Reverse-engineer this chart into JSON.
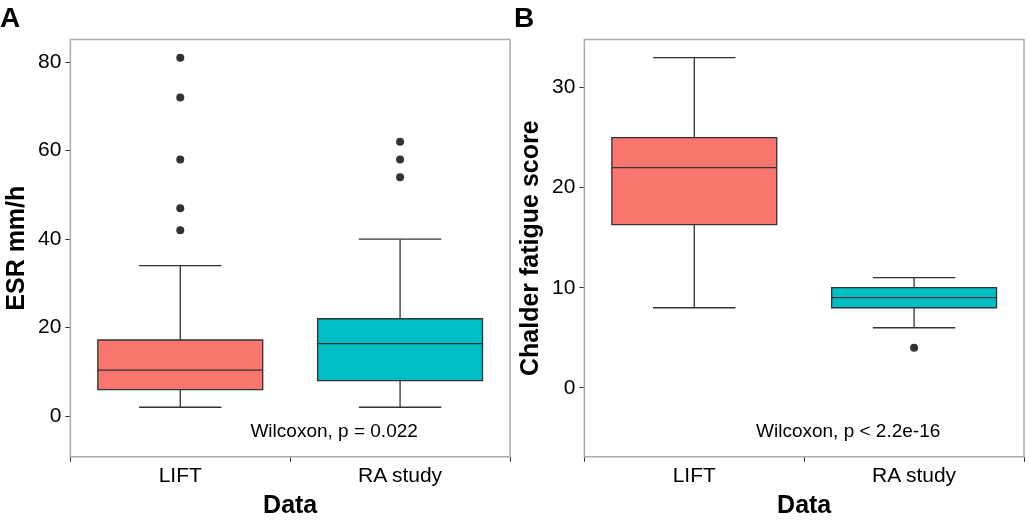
{
  "chart_data": [
    {
      "type": "box",
      "title": "A",
      "xlabel": "Data",
      "ylabel": "ESR mm/h",
      "categories": [
        "LIFT",
        "RA study"
      ],
      "colors": [
        "#f8766d",
        "#00bfc4"
      ],
      "boxes": [
        {
          "low": 2,
          "q1": 6,
          "median": 10.4,
          "q3": 17.2,
          "high": 34,
          "outliers": [
            42,
            47,
            58,
            72,
            81
          ]
        },
        {
          "low": 2,
          "q1": 8,
          "median": 16.4,
          "q3": 22,
          "high": 40,
          "outliers": [
            54,
            58,
            62
          ]
        }
      ],
      "ylim": [
        -9.2,
        85.1
      ],
      "yticks": [
        0,
        20,
        40,
        60,
        80
      ],
      "grid": false,
      "annotations": [
        "Wilcoxon, p = 0.022"
      ]
    },
    {
      "type": "box",
      "title": "B",
      "xlabel": "Data",
      "ylabel": "Chalder fatigue score",
      "categories": [
        "LIFT",
        "RA study"
      ],
      "colors": [
        "#f8766d",
        "#00bfc4"
      ],
      "boxes": [
        {
          "low": 8,
          "q1": 16.3,
          "median": 22,
          "q3": 25,
          "high": 33
        },
        {
          "low": 6,
          "q1": 8,
          "median": 9,
          "q3": 10,
          "high": 11,
          "outliers": [
            4
          ]
        }
      ],
      "ylim": [
        -6.9,
        34.8
      ],
      "yticks": [
        0,
        10,
        20,
        30
      ],
      "grid": false,
      "annotations": [
        "Wilcoxon, p < 2.2e-16"
      ]
    }
  ]
}
